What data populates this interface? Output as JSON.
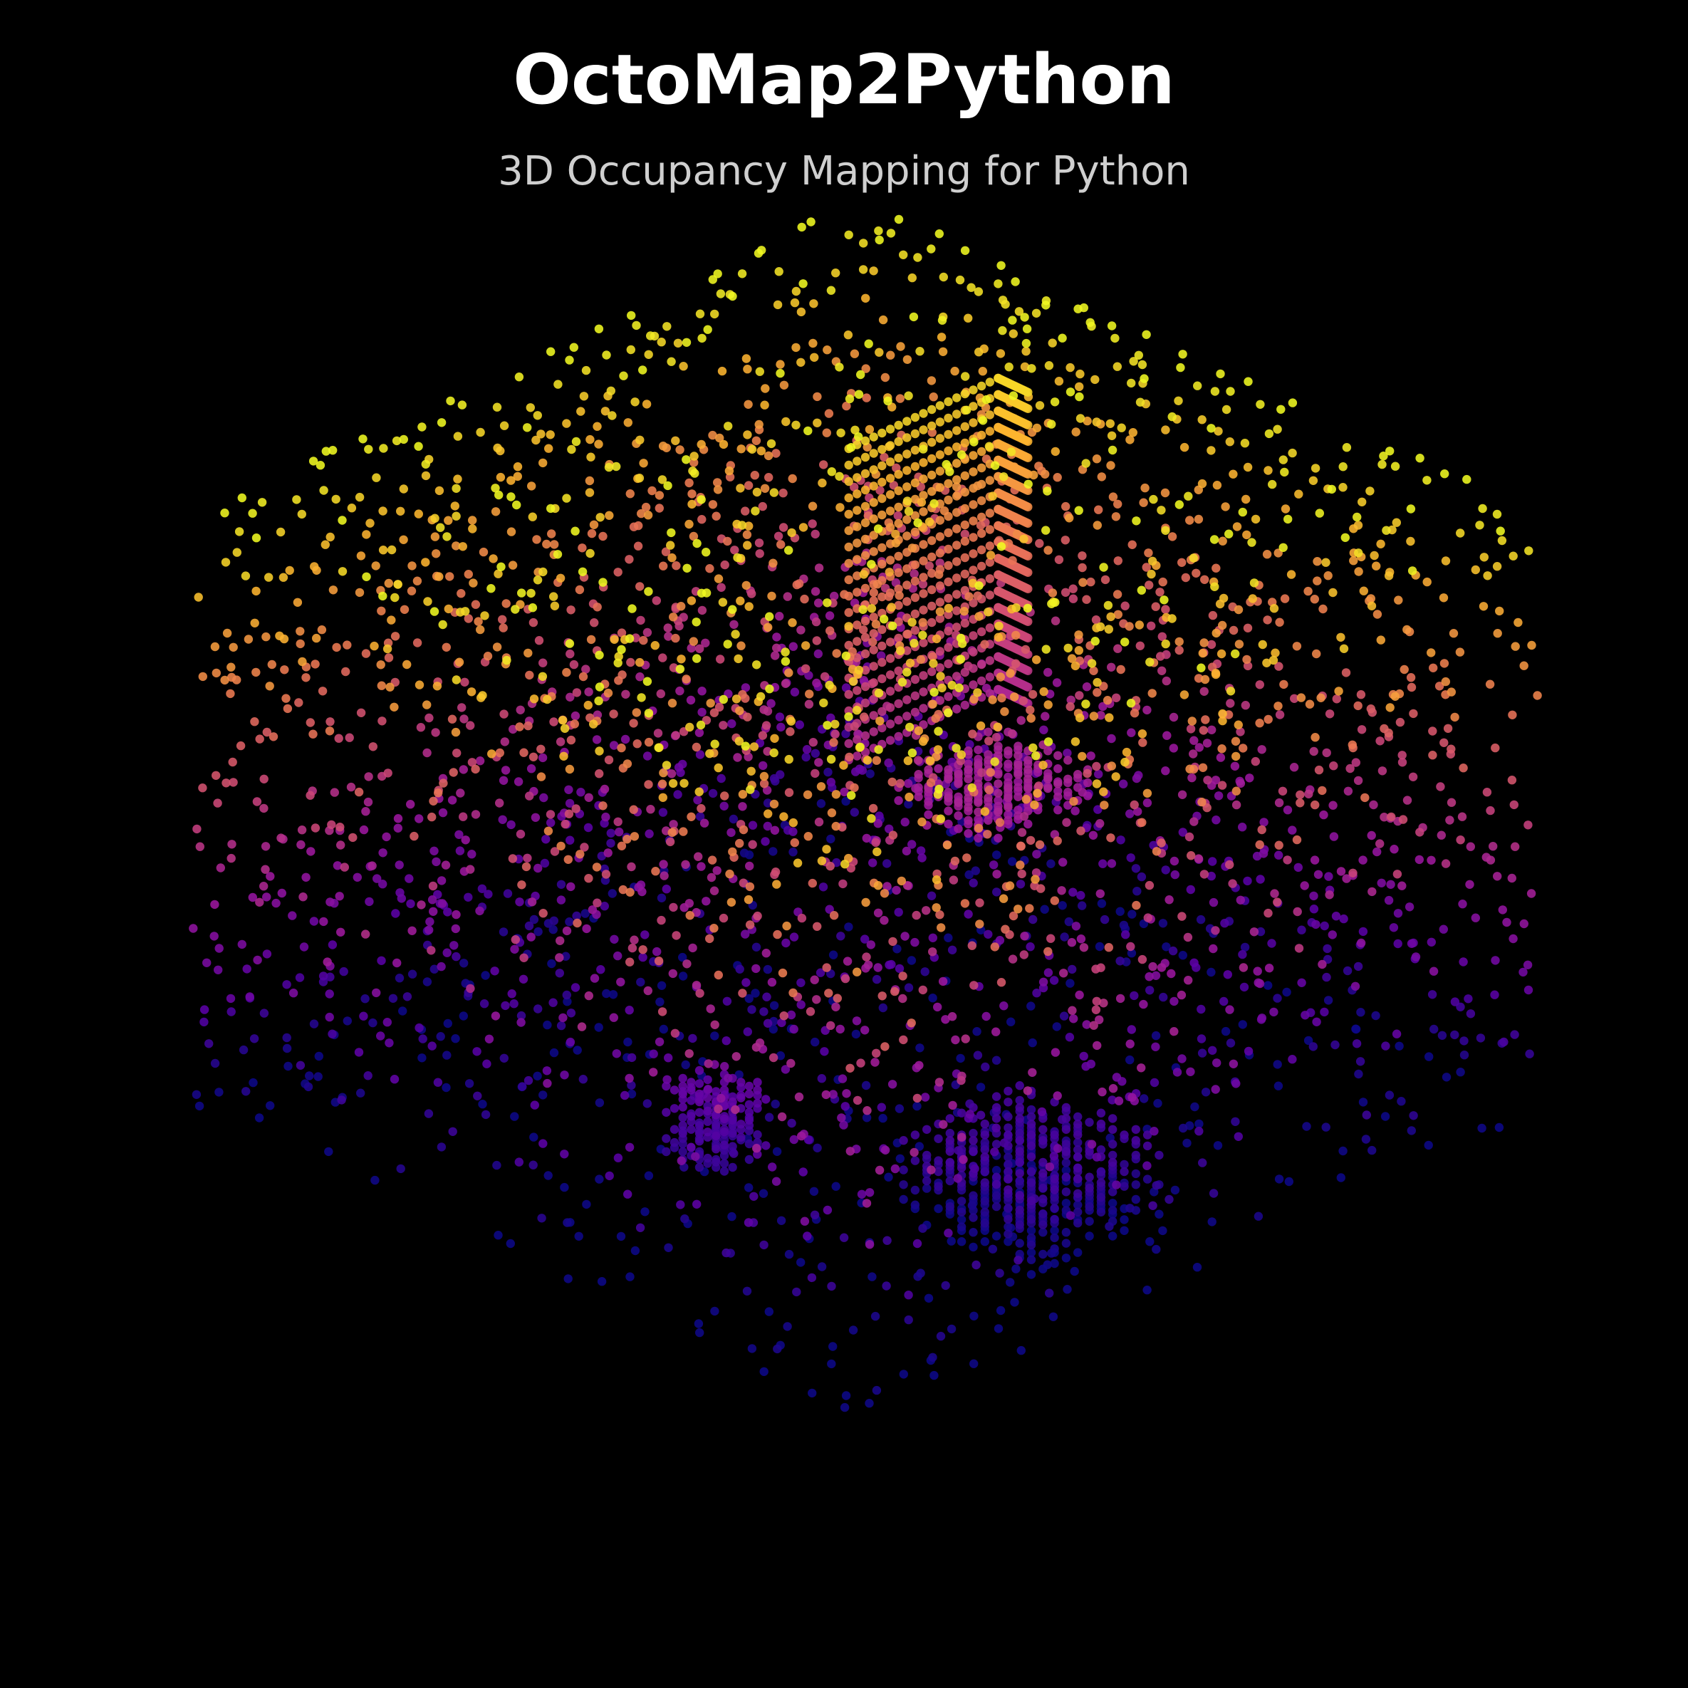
{
  "header": {
    "title": "OctoMap2Python",
    "subtitle": "3D Occupancy Mapping for Python"
  },
  "visualization": {
    "type": "3d-voxel-point-cloud",
    "projection": "isometric",
    "color_by": "height",
    "colormap": "plasma",
    "colormap_stops": [
      "#0d0887",
      "#5c01a6",
      "#9c179e",
      "#cc4778",
      "#ed7953",
      "#fdb42f",
      "#f0f921"
    ],
    "background": "#000000"
  }
}
